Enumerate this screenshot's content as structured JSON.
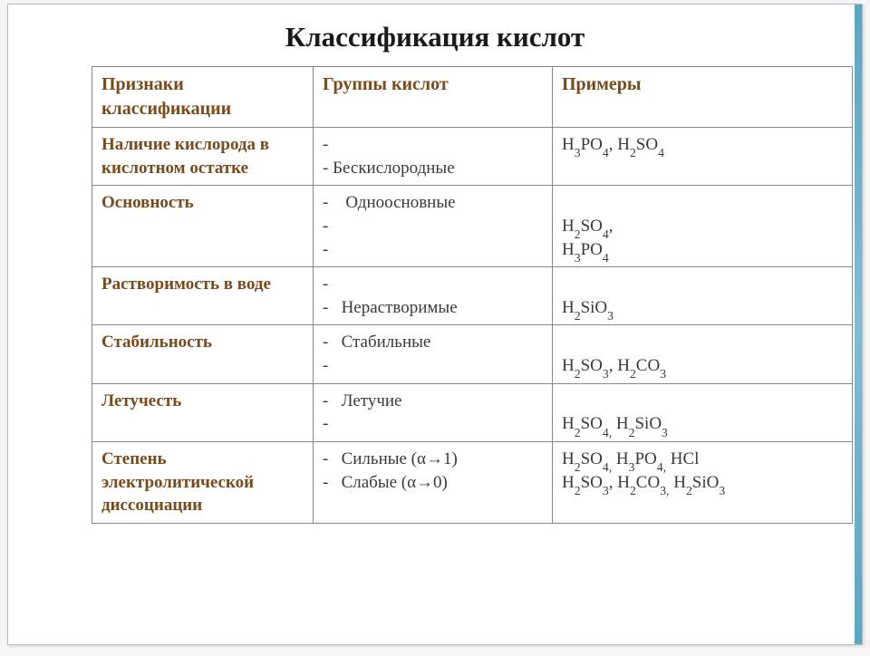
{
  "title": "Классификация кислот",
  "colors": {
    "heading": "#7a4a1a",
    "text": "#3a3a3a",
    "border": "#888888",
    "accent": "#5aa6c4",
    "background": "#ffffff"
  },
  "columns": [
    "Признаки классификации",
    "Группы кислот",
    "Примеры"
  ],
  "rows": [
    {
      "attr": " Наличие кислорода в кислотном остатке",
      "groups": [
        "-",
        "- Бескислородные"
      ],
      "examples_html": " H<sub>3</sub>PO<sub>4</sub>, H<sub>2</sub>SO<sub>4</sub>"
    },
    {
      "attr": "Основность",
      "groups": [
        "-    Одноосновные",
        "-",
        "-"
      ],
      "examples_html": "<br> H<sub>2</sub>SO<sub>4</sub>,<br> H<sub>3</sub>PO<sub>4</sub>"
    },
    {
      "attr": "Растворимость в воде",
      "groups": [
        "-",
        "-   Нерастворимые"
      ],
      "examples_html": "<br> H<sub>2</sub>SiO<sub>3</sub>"
    },
    {
      "attr": "Стабильность",
      "groups": [
        "-   Стабильные",
        "-"
      ],
      "examples_html": "<br> H<sub>2</sub>SO<sub>3</sub>, H<sub>2</sub>CO<sub>3</sub>"
    },
    {
      "attr": "Летучесть",
      "groups": [
        "-   Летучие",
        "-"
      ],
      "examples_html": "<br>H<sub>2</sub>SO<sub>4,</sub> H<sub>2</sub>SiO<sub>3</sub>"
    },
    {
      "attr": "Степень электролитической диссоциации",
      "groups": [
        "-   Сильные (α→1)",
        "-   Слабые (α→0)"
      ],
      "examples_html": "H<sub>2</sub>SO<sub>4,</sub> H<sub>3</sub>PO<sub>4,</sub> HCl<br>H<sub>2</sub>SO<sub>3</sub>, H<sub>2</sub>CO<sub>3,</sub> H<sub>2</sub>SiO<sub>3</sub>"
    }
  ]
}
